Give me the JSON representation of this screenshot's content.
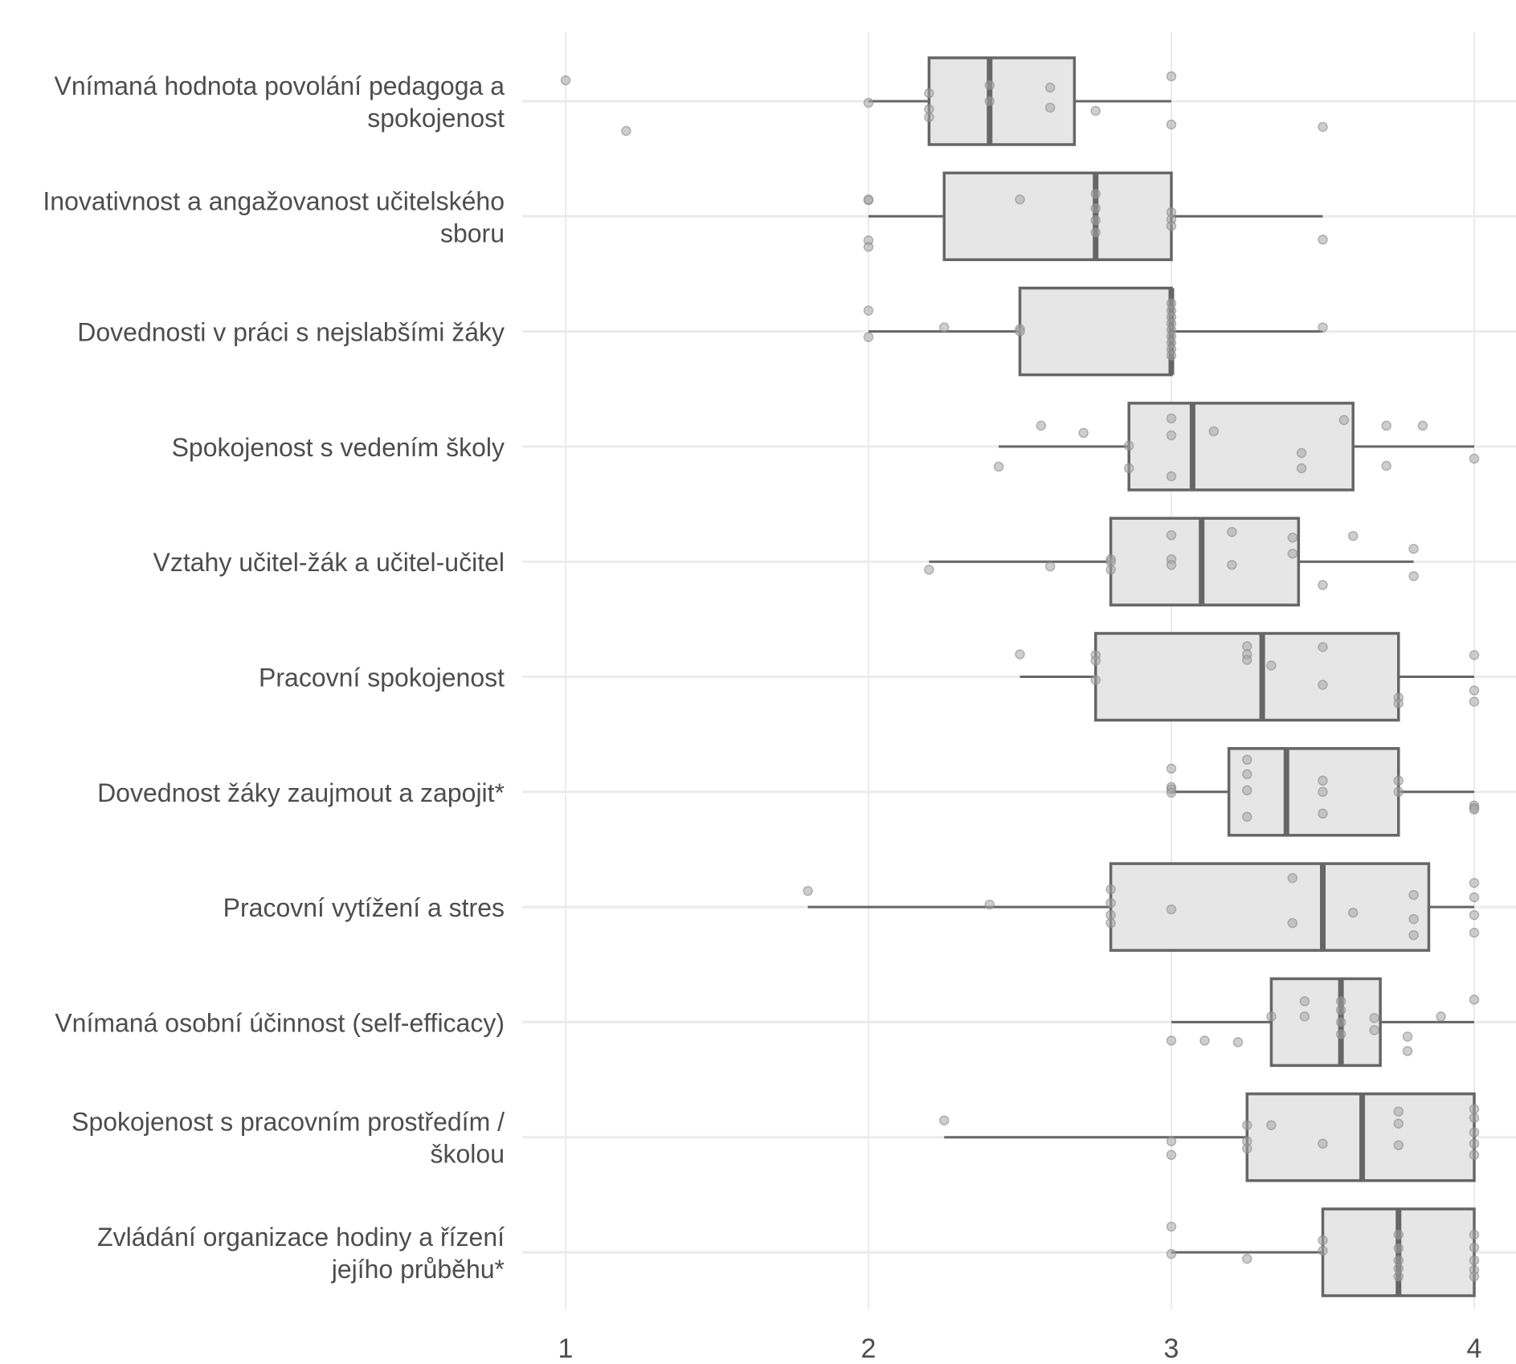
{
  "chart_data": {
    "type": "boxplot",
    "orientation": "horizontal",
    "title": "",
    "xlabel": "",
    "ylabel": "",
    "xlim": [
      0.85,
      4.15
    ],
    "x_ticks": [
      1,
      2,
      3,
      4
    ],
    "x_tick_labels": [
      "1",
      "2",
      "3",
      "4"
    ],
    "grid": true,
    "legend": "none",
    "colors": {
      "box_fill": "#e6e6e6",
      "box_stroke": "#666666",
      "point": "#a6a6a6",
      "grid": "#ebebeb"
    },
    "categories": [
      {
        "label_lines": [
          "Vnímaná hodnota povolání pedagoga a",
          "spokojenost"
        ],
        "whisker_low": 2.0,
        "q1": 2.2,
        "median": 2.4,
        "q3": 2.68,
        "whisker_high": 3.0,
        "points": [
          [
            1.0,
            0.26
          ],
          [
            1.2,
            -0.37
          ],
          [
            2.0,
            -0.02
          ],
          [
            2.2,
            0.1
          ],
          [
            2.2,
            -0.1
          ],
          [
            2.2,
            -0.2
          ],
          [
            2.4,
            0.2
          ],
          [
            2.4,
            0.0
          ],
          [
            2.6,
            0.17
          ],
          [
            2.6,
            -0.08
          ],
          [
            2.75,
            -0.12
          ],
          [
            3.0,
            0.31
          ],
          [
            3.0,
            -0.29
          ],
          [
            3.5,
            -0.32
          ]
        ]
      },
      {
        "label_lines": [
          "Inovativnost a angažovanost učitelského",
          "sboru"
        ],
        "whisker_low": 2.0,
        "q1": 2.25,
        "median": 2.75,
        "q3": 3.0,
        "whisker_high": 3.5,
        "points": [
          [
            2.0,
            0.2
          ],
          [
            2.0,
            0.21
          ],
          [
            2.0,
            -0.3
          ],
          [
            2.0,
            -0.38
          ],
          [
            2.5,
            0.21
          ],
          [
            2.75,
            0.28
          ],
          [
            2.75,
            0.1
          ],
          [
            2.75,
            -0.05
          ],
          [
            2.75,
            -0.2
          ],
          [
            3.0,
            0.05
          ],
          [
            3.0,
            -0.04
          ],
          [
            3.0,
            -0.12
          ],
          [
            3.5,
            -0.29
          ]
        ]
      },
      {
        "label_lines": [
          "Dovednosti v práci s nejslabšími žáky"
        ],
        "whisker_low": 2.0,
        "q1": 2.5,
        "median": 3.0,
        "q3": 3.0,
        "whisker_high": 3.5,
        "points": [
          [
            2.0,
            0.26
          ],
          [
            2.0,
            -0.07
          ],
          [
            2.25,
            0.05
          ],
          [
            2.5,
            0.03
          ],
          [
            2.5,
            0.0
          ],
          [
            3.0,
            0.35
          ],
          [
            3.0,
            0.26
          ],
          [
            3.0,
            0.18
          ],
          [
            3.0,
            0.1
          ],
          [
            3.0,
            0.02
          ],
          [
            3.0,
            -0.06
          ],
          [
            3.0,
            -0.14
          ],
          [
            3.0,
            -0.22
          ],
          [
            3.0,
            -0.3
          ],
          [
            3.5,
            0.05
          ]
        ]
      },
      {
        "label_lines": [
          "Spokojenost s vedením školy"
        ],
        "whisker_low": 2.43,
        "q1": 2.86,
        "median": 3.07,
        "q3": 3.6,
        "whisker_high": 4.0,
        "points": [
          [
            2.43,
            -0.25
          ],
          [
            2.57,
            0.26
          ],
          [
            2.71,
            0.17
          ],
          [
            2.86,
            0.01
          ],
          [
            2.86,
            -0.27
          ],
          [
            3.0,
            0.35
          ],
          [
            3.0,
            0.14
          ],
          [
            3.0,
            -0.37
          ],
          [
            3.14,
            0.19
          ],
          [
            3.43,
            -0.08
          ],
          [
            3.43,
            -0.27
          ],
          [
            3.57,
            0.33
          ],
          [
            3.71,
            0.26
          ],
          [
            3.71,
            -0.24
          ],
          [
            3.83,
            0.26
          ],
          [
            4.0,
            -0.15
          ]
        ]
      },
      {
        "label_lines": [
          "Vztahy učitel-žák a učitel-učitel"
        ],
        "whisker_low": 2.2,
        "q1": 2.8,
        "median": 3.1,
        "q3": 3.42,
        "whisker_high": 3.8,
        "points": [
          [
            2.2,
            -0.1
          ],
          [
            2.6,
            -0.06
          ],
          [
            2.8,
            0.03
          ],
          [
            2.8,
            0.0
          ],
          [
            2.8,
            -0.1
          ],
          [
            3.0,
            0.33
          ],
          [
            3.0,
            0.03
          ],
          [
            3.0,
            -0.04
          ],
          [
            3.2,
            0.37
          ],
          [
            3.2,
            -0.04
          ],
          [
            3.4,
            0.3
          ],
          [
            3.4,
            0.1
          ],
          [
            3.5,
            -0.29
          ],
          [
            3.6,
            0.32
          ],
          [
            3.8,
            0.16
          ],
          [
            3.8,
            -0.18
          ]
        ]
      },
      {
        "label_lines": [
          "Pracovní spokojenost"
        ],
        "whisker_low": 2.5,
        "q1": 2.75,
        "median": 3.3,
        "q3": 3.75,
        "whisker_high": 4.0,
        "points": [
          [
            2.5,
            0.28
          ],
          [
            2.75,
            0.27
          ],
          [
            2.75,
            0.2
          ],
          [
            2.75,
            -0.04
          ],
          [
            3.25,
            0.38
          ],
          [
            3.25,
            0.28
          ],
          [
            3.25,
            0.21
          ],
          [
            3.33,
            0.14
          ],
          [
            3.5,
            0.37
          ],
          [
            3.5,
            -0.1
          ],
          [
            3.75,
            -0.26
          ],
          [
            3.75,
            -0.33
          ],
          [
            4.0,
            0.27
          ],
          [
            4.0,
            -0.17
          ],
          [
            4.0,
            -0.31
          ]
        ]
      },
      {
        "label_lines": [
          "Dovednost žáky zaujmout a zapojit*"
        ],
        "whisker_low": 3.0,
        "q1": 3.19,
        "median": 3.38,
        "q3": 3.75,
        "whisker_high": 4.0,
        "points": [
          [
            3.0,
            0.29
          ],
          [
            3.0,
            0.06
          ],
          [
            3.0,
            0.03
          ],
          [
            3.0,
            -0.01
          ],
          [
            3.25,
            0.4
          ],
          [
            3.25,
            0.22
          ],
          [
            3.25,
            0.02
          ],
          [
            3.25,
            -0.31
          ],
          [
            3.5,
            0.14
          ],
          [
            3.5,
            0.0
          ],
          [
            3.5,
            -0.27
          ],
          [
            3.75,
            0.14
          ],
          [
            3.75,
            0.0
          ],
          [
            4.0,
            -0.17
          ],
          [
            4.0,
            -0.2
          ],
          [
            4.0,
            -0.22
          ]
        ]
      },
      {
        "label_lines": [
          "Pracovní vytížení a stres"
        ],
        "whisker_low": 1.8,
        "q1": 2.8,
        "median": 3.5,
        "q3": 3.85,
        "whisker_high": 4.0,
        "points": [
          [
            1.8,
            0.2
          ],
          [
            2.4,
            0.03
          ],
          [
            2.8,
            0.22
          ],
          [
            2.8,
            0.05
          ],
          [
            2.8,
            -0.1
          ],
          [
            2.8,
            -0.2
          ],
          [
            3.0,
            -0.03
          ],
          [
            3.4,
            0.36
          ],
          [
            3.4,
            -0.2
          ],
          [
            3.6,
            -0.07
          ],
          [
            3.8,
            0.15
          ],
          [
            3.8,
            -0.15
          ],
          [
            3.8,
            -0.35
          ],
          [
            4.0,
            0.3
          ],
          [
            4.0,
            0.12
          ],
          [
            4.0,
            -0.1
          ],
          [
            4.0,
            -0.32
          ]
        ]
      },
      {
        "label_lines": [
          "Vnímaná osobní účinnost (self-efficacy)"
        ],
        "whisker_low": 3.0,
        "q1": 3.33,
        "median": 3.56,
        "q3": 3.69,
        "whisker_high": 4.0,
        "points": [
          [
            3.0,
            -0.23
          ],
          [
            3.11,
            -0.23
          ],
          [
            3.22,
            -0.25
          ],
          [
            3.33,
            0.07
          ],
          [
            3.44,
            0.26
          ],
          [
            3.44,
            0.07
          ],
          [
            3.56,
            0.26
          ],
          [
            3.56,
            0.15
          ],
          [
            3.56,
            0.0
          ],
          [
            3.56,
            -0.15
          ],
          [
            3.67,
            0.05
          ],
          [
            3.67,
            -0.1
          ],
          [
            3.78,
            -0.18
          ],
          [
            3.78,
            -0.36
          ],
          [
            3.89,
            0.07
          ],
          [
            4.0,
            0.28
          ]
        ]
      },
      {
        "label_lines": [
          "Spokojenost s pracovním prostředím /",
          "školou"
        ],
        "whisker_low": 2.25,
        "q1": 3.25,
        "median": 3.63,
        "q3": 4.0,
        "whisker_high": 4.0,
        "points": [
          [
            2.25,
            0.21
          ],
          [
            3.0,
            -0.05
          ],
          [
            3.0,
            -0.22
          ],
          [
            3.25,
            0.15
          ],
          [
            3.25,
            -0.05
          ],
          [
            3.25,
            -0.14
          ],
          [
            3.33,
            0.15
          ],
          [
            3.5,
            -0.08
          ],
          [
            3.75,
            0.32
          ],
          [
            3.75,
            0.17
          ],
          [
            3.75,
            -0.1
          ],
          [
            4.0,
            0.35
          ],
          [
            4.0,
            0.24
          ],
          [
            4.0,
            0.06
          ],
          [
            4.0,
            -0.08
          ],
          [
            4.0,
            -0.22
          ]
        ]
      },
      {
        "label_lines": [
          "Zvládání organizace hodiny a řízení",
          "jejího průběhu*"
        ],
        "whisker_low": 3.0,
        "q1": 3.5,
        "median": 3.75,
        "q3": 4.0,
        "whisker_high": 4.0,
        "points": [
          [
            3.0,
            0.32
          ],
          [
            3.0,
            -0.02
          ],
          [
            3.25,
            -0.08
          ],
          [
            3.5,
            0.15
          ],
          [
            3.5,
            0.02
          ],
          [
            3.75,
            0.22
          ],
          [
            3.75,
            0.05
          ],
          [
            3.75,
            -0.1
          ],
          [
            3.75,
            -0.2
          ],
          [
            3.75,
            -0.3
          ],
          [
            4.0,
            0.22
          ],
          [
            4.0,
            0.06
          ],
          [
            4.0,
            -0.1
          ],
          [
            4.0,
            -0.22
          ],
          [
            4.0,
            -0.3
          ]
        ]
      }
    ]
  }
}
